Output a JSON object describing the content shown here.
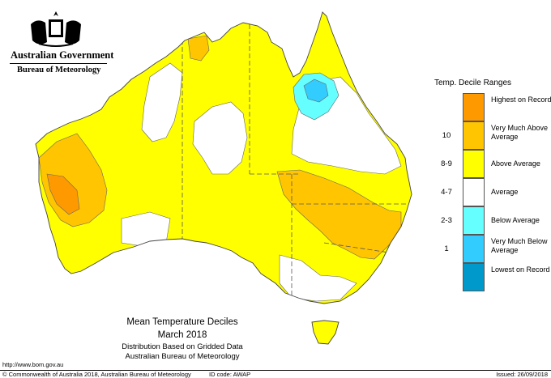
{
  "header": {
    "gov_name": "Australian Government",
    "bureau_name": "Bureau of Meteorology"
  },
  "legend": {
    "title": "Temp. Decile Ranges",
    "items": [
      {
        "code": "",
        "label": "Highest on Record",
        "color": "#ff9900"
      },
      {
        "code": "10",
        "label": "Very Much Above Average",
        "color": "#ffc500"
      },
      {
        "code": "8-9",
        "label": "Above Average",
        "color": "#ffff00"
      },
      {
        "code": "4-7",
        "label": "Average",
        "color": "#ffffff"
      },
      {
        "code": "2-3",
        "label": "Below Average",
        "color": "#66ffff"
      },
      {
        "code": "1",
        "label": "Very Much Below Average",
        "color": "#33ccff"
      },
      {
        "code": "",
        "label": "Lowest on Record",
        "color": "#0099cc"
      }
    ]
  },
  "caption": {
    "title": "Mean Temperature Deciles",
    "period": "March 2018",
    "line3": "Distribution Based on Gridded Data",
    "line4": "Australian Bureau of Meteorology"
  },
  "footer": {
    "url": "http://www.bom.gov.au",
    "copyright": "© Commonwealth of Australia 2018, Australian Bureau of Meteorology",
    "id_code": "ID code: AWAP",
    "issued": "Issued: 26/09/2018"
  }
}
